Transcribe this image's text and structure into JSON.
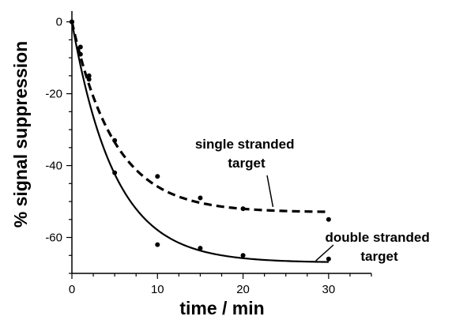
{
  "chart_data": {
    "type": "scatter",
    "title": "",
    "xlabel": "time / min",
    "ylabel": "% signal suppression",
    "xlim": [
      0,
      35
    ],
    "ylim": [
      -70,
      3
    ],
    "x_ticks": [
      0,
      10,
      20,
      30
    ],
    "y_ticks": [
      0,
      -20,
      -40,
      -60
    ],
    "x_tick_labels": [
      "0",
      "10",
      "20",
      "30"
    ],
    "y_tick_labels": [
      "0",
      "-20",
      "-40",
      "-60"
    ],
    "grid": false,
    "legend": "none",
    "series": [
      {
        "key": "single",
        "line_style": "dashed",
        "color": "#000000",
        "points": [
          {
            "x": 0,
            "y": 0
          },
          {
            "x": 1,
            "y": -7
          },
          {
            "x": 2,
            "y": -15
          },
          {
            "x": 5,
            "y": -33
          },
          {
            "x": 10,
            "y": -43
          },
          {
            "x": 15,
            "y": -49
          },
          {
            "x": 20,
            "y": -52
          },
          {
            "x": 30,
            "y": -55
          }
        ],
        "fit": {
          "model": "exponential_decay",
          "plateau": -53,
          "rate": 0.2
        }
      },
      {
        "key": "double",
        "line_style": "solid",
        "color": "#000000",
        "points": [
          {
            "x": 0,
            "y": 0
          },
          {
            "x": 1,
            "y": -9
          },
          {
            "x": 2,
            "y": -16
          },
          {
            "x": 5,
            "y": -42
          },
          {
            "x": 10,
            "y": -62
          },
          {
            "x": 15,
            "y": -63
          },
          {
            "x": 20,
            "y": -65
          },
          {
            "x": 30,
            "y": -66
          }
        ],
        "fit": {
          "model": "exponential_decay",
          "plateau": -67,
          "rate": 0.2
        }
      }
    ],
    "annotations": [
      {
        "key": "single",
        "lines": [
          "single stranded",
          "target"
        ],
        "points_to": {
          "x": 23.5,
          "y": -51.5
        }
      },
      {
        "key": "double",
        "lines": [
          "double stranded",
          "target"
        ],
        "points_to": {
          "x": 28.5,
          "y": -66.5
        }
      }
    ]
  }
}
